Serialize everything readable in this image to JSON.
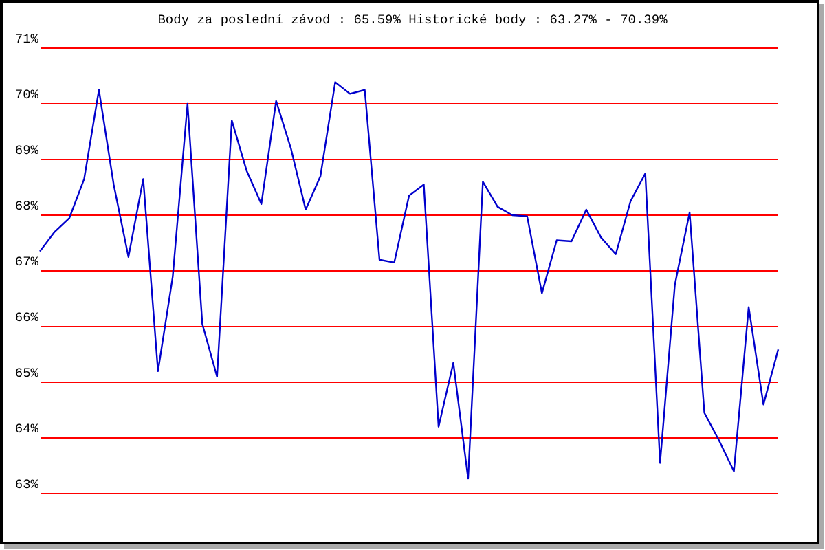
{
  "chart_data": {
    "type": "line",
    "title": "Body za poslední závod : 65.59%  Historické body : 63.27% - 70.39%",
    "categories": [
      null,
      null,
      null,
      null,
      null,
      null,
      null,
      null,
      null,
      null,
      null,
      null,
      null,
      null,
      null,
      null,
      null,
      null,
      null,
      null,
      null,
      null,
      null,
      null,
      null,
      null,
      null,
      null,
      null,
      null,
      null,
      null,
      null,
      null,
      null,
      null,
      null,
      null,
      null,
      null,
      null,
      null,
      null,
      null,
      null,
      null,
      null,
      null,
      null,
      null,
      null
    ],
    "series": [
      {
        "color": "#0000cc",
        "values": [
          67.35,
          67.7,
          67.95,
          68.65,
          70.25,
          68.55,
          67.25,
          68.65,
          65.2,
          66.9,
          70.0,
          66.05,
          65.1,
          69.7,
          68.8,
          68.2,
          70.05,
          69.2,
          68.1,
          68.7,
          70.39,
          70.18,
          70.25,
          67.2,
          67.15,
          68.35,
          68.55,
          64.2,
          65.35,
          63.27,
          68.6,
          68.15,
          68.0,
          67.98,
          66.6,
          67.55,
          67.53,
          68.1,
          67.6,
          67.3,
          68.25,
          68.75,
          63.55,
          66.75,
          68.05,
          64.45,
          63.95,
          63.4,
          66.35,
          64.6,
          65.59
        ]
      }
    ],
    "ylim": [
      63,
      71
    ],
    "yticks": [
      {
        "value": 63,
        "label": "63%"
      },
      {
        "value": 64,
        "label": "64%"
      },
      {
        "value": 65,
        "label": "65%"
      },
      {
        "value": 66,
        "label": "66%"
      },
      {
        "value": 67,
        "label": "67%"
      },
      {
        "value": 68,
        "label": "68%"
      },
      {
        "value": 69,
        "label": "69%"
      },
      {
        "value": 70,
        "label": "70%"
      },
      {
        "value": 71,
        "label": "71%"
      }
    ],
    "grid": "y",
    "marker": "none",
    "line_style": "solid",
    "tick_labels": "y"
  }
}
